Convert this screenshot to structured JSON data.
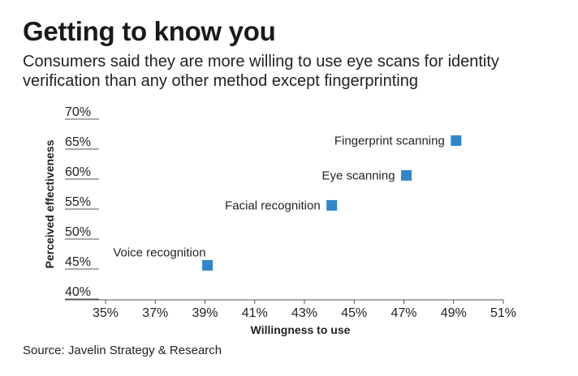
{
  "header": {
    "title": "Getting to know you",
    "subtitle": "Consumers said they are more willing to use eye scans for identity verification than any other method except fingerprinting"
  },
  "footer": {
    "source": "Source: Javelin Strategy & Research"
  },
  "chart_data": {
    "type": "scatter",
    "xlabel": "Willingness to use",
    "ylabel": "Perceived effectiveness",
    "xlim": [
      35,
      51
    ],
    "ylim": [
      40,
      70
    ],
    "x_ticks": [
      "35%",
      "37%",
      "39%",
      "41%",
      "43%",
      "45%",
      "47%",
      "49%",
      "51%"
    ],
    "y_ticks": [
      "40%",
      "45%",
      "50%",
      "55%",
      "60%",
      "65%",
      "70%"
    ],
    "grid": false,
    "marker_color": "#2f86cc",
    "points": [
      {
        "label": "Fingerprint scanning",
        "x": 49.1,
        "y": 65.2
      },
      {
        "label": "Eye scanning",
        "x": 47.1,
        "y": 59.4
      },
      {
        "label": "Facial recognition",
        "x": 44.1,
        "y": 54.4
      },
      {
        "label": "Voice recognition",
        "x": 39.1,
        "y": 44.4
      }
    ]
  }
}
